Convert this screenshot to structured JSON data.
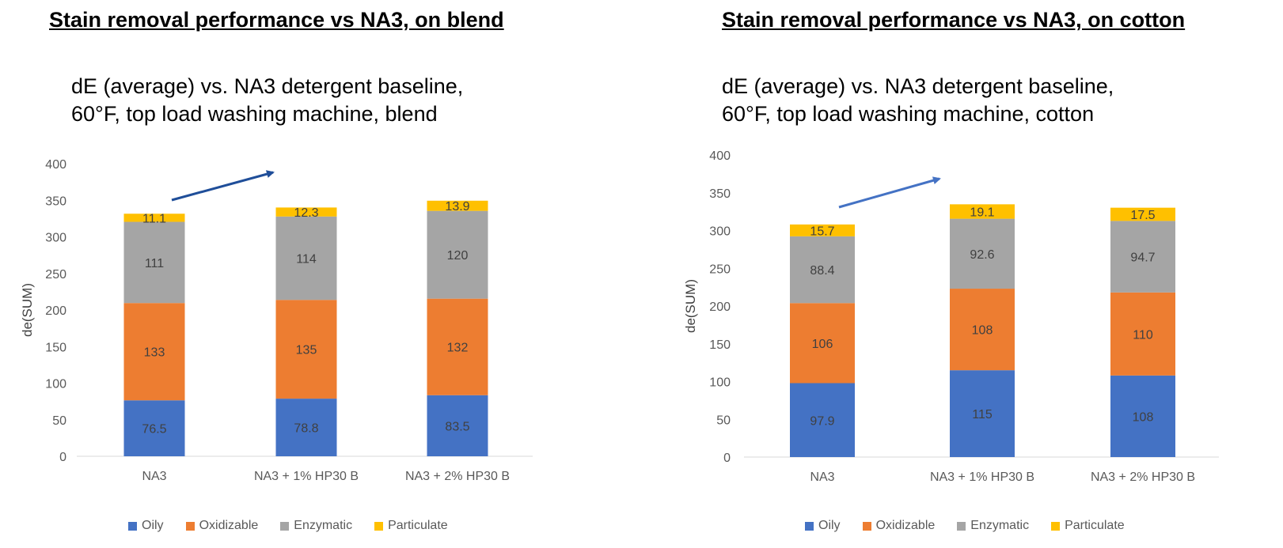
{
  "chart_data": [
    {
      "type": "bar",
      "stacked": true,
      "heading": "Stain removal performance vs NA3, on blend",
      "subtitle_line1": "dE (average) vs. NA3 detergent baseline,",
      "subtitle_line2": "60°F, top load washing machine, blend",
      "ylabel": "de(SUM)",
      "ylim": [
        0,
        400
      ],
      "yticks": [
        "0",
        "50",
        "100",
        "150",
        "200",
        "250",
        "300",
        "350",
        "400"
      ],
      "categories": [
        "NA3",
        "NA3 + 1% HP30 B",
        "NA3 + 2% HP30 B"
      ],
      "series": [
        {
          "name": "Oily",
          "values": [
            76.5,
            78.8,
            83.5
          ],
          "labels": [
            "76.5",
            "78.8",
            "83.5"
          ],
          "color": "#4472C4"
        },
        {
          "name": "Oxidizable",
          "values": [
            133,
            135,
            132
          ],
          "labels": [
            "133",
            "135",
            "132"
          ],
          "color": "#ED7D31"
        },
        {
          "name": "Enzymatic",
          "values": [
            111,
            114,
            120
          ],
          "labels": [
            "111",
            "114",
            "120"
          ],
          "color": "#A5A5A5"
        },
        {
          "name": "Particulate",
          "values": [
            11.1,
            12.3,
            13.9
          ],
          "labels": [
            "11.1",
            "12.3",
            "13.9"
          ],
          "color": "#FFC000"
        }
      ],
      "legend_position": "bottom",
      "arrow_color": "#1F4E99"
    },
    {
      "type": "bar",
      "stacked": true,
      "heading": "Stain removal performance vs NA3, on cotton",
      "subtitle_line1": "dE (average) vs. NA3 detergent baseline,",
      "subtitle_line2": "60°F, top load washing machine, cotton",
      "ylabel": "de(SUM)",
      "ylim": [
        0,
        400
      ],
      "yticks": [
        "0",
        "50",
        "100",
        "150",
        "200",
        "250",
        "300",
        "350",
        "400"
      ],
      "categories": [
        "NA3",
        "NA3 + 1% HP30 B",
        "NA3 + 2% HP30 B"
      ],
      "series": [
        {
          "name": "Oily",
          "values": [
            97.9,
            115,
            108
          ],
          "labels": [
            "97.9",
            "115",
            "108"
          ],
          "color": "#4472C4"
        },
        {
          "name": "Oxidizable",
          "values": [
            106,
            108,
            110
          ],
          "labels": [
            "106",
            "108",
            "110"
          ],
          "color": "#ED7D31"
        },
        {
          "name": "Enzymatic",
          "values": [
            88.4,
            92.6,
            94.7
          ],
          "labels": [
            "88.4",
            "92.6",
            "94.7"
          ],
          "color": "#A5A5A5"
        },
        {
          "name": "Particulate",
          "values": [
            15.7,
            19.1,
            17.5
          ],
          "labels": [
            "15.7",
            "19.1",
            "17.5"
          ],
          "color": "#FFC000"
        }
      ],
      "legend_position": "bottom",
      "arrow_color": "#4472C4"
    }
  ]
}
